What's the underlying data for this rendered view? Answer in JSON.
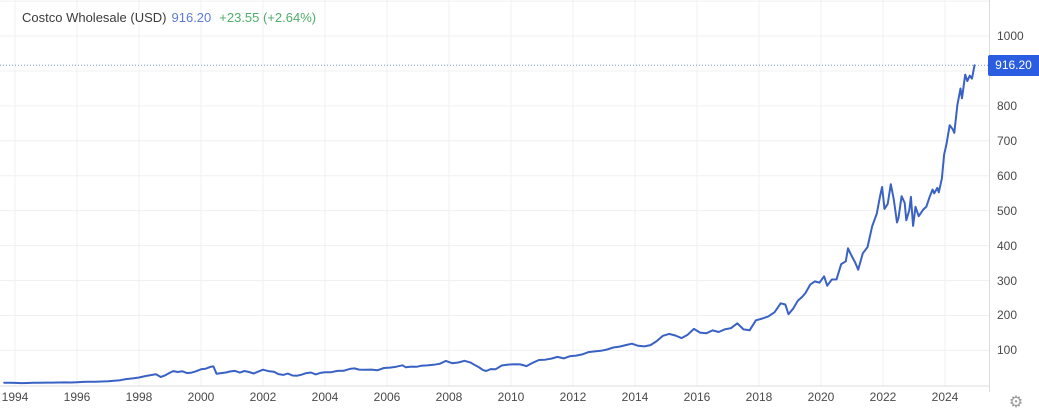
{
  "header": {
    "title": "Costco Wholesale (USD)",
    "price": "916.20",
    "change": "+23.55 (+2.64%)"
  },
  "price_badge": {
    "label": "916.20"
  },
  "icons": {
    "settings": "⚙"
  },
  "colors": {
    "line": "#3a62c4",
    "badge_bg": "#2b5de0",
    "badge_text": "#ffffff",
    "price_blue": "#5b7dd6",
    "change_green": "#4fae6a",
    "gridline": "#f0f0f0",
    "axis_line": "#dcdcdc",
    "dotted_price_line": "#7f9cd9"
  },
  "chart_data": {
    "type": "line",
    "title": "Costco Wholesale (USD)",
    "series_name": "Costco Wholesale stock price",
    "currency": "USD",
    "current_value": 916.2,
    "change_abs": 23.55,
    "change_pct": 2.64,
    "x_ticks": [
      1994,
      1996,
      1998,
      2000,
      2002,
      2004,
      2006,
      2008,
      2010,
      2012,
      2014,
      2016,
      2018,
      2020,
      2022,
      2024
    ],
    "y_ticks": [
      100,
      200,
      300,
      400,
      500,
      600,
      700,
      800,
      1000
    ],
    "y_gridline_step": 100,
    "y_gridline_max": 1100,
    "x_range": [
      1993.65,
      2025.1
    ],
    "ylim": [
      0,
      1104
    ],
    "grid": true,
    "legend_position": "none",
    "points": [
      [
        1993.65,
        7.4
      ],
      [
        1993.8,
        7.2
      ],
      [
        1994.0,
        7.0
      ],
      [
        1994.2,
        6.4
      ],
      [
        1994.4,
        6.6
      ],
      [
        1994.6,
        7.1
      ],
      [
        1994.8,
        7.5
      ],
      [
        1995.0,
        7.8
      ],
      [
        1995.2,
        7.6
      ],
      [
        1995.4,
        8.1
      ],
      [
        1995.6,
        8.4
      ],
      [
        1995.8,
        7.9
      ],
      [
        1996.0,
        8.8
      ],
      [
        1996.2,
        9.6
      ],
      [
        1996.4,
        10.3
      ],
      [
        1996.6,
        9.9
      ],
      [
        1996.8,
        10.8
      ],
      [
        1997.0,
        11.5
      ],
      [
        1997.2,
        12.8
      ],
      [
        1997.4,
        14.6
      ],
      [
        1997.6,
        17.9
      ],
      [
        1997.8,
        19.7
      ],
      [
        1998.0,
        22.3
      ],
      [
        1998.2,
        26.4
      ],
      [
        1998.4,
        29.5
      ],
      [
        1998.55,
        31.4
      ],
      [
        1998.7,
        23.9
      ],
      [
        1998.85,
        28.6
      ],
      [
        1999.0,
        36.4
      ],
      [
        1999.1,
        40.6
      ],
      [
        1999.25,
        38.1
      ],
      [
        1999.4,
        40.2
      ],
      [
        1999.55,
        34.8
      ],
      [
        1999.7,
        36.5
      ],
      [
        1999.85,
        40.3
      ],
      [
        2000.0,
        45.7
      ],
      [
        2000.15,
        47.5
      ],
      [
        2000.3,
        52.8
      ],
      [
        2000.4,
        54.2
      ],
      [
        2000.5,
        33.2
      ],
      [
        2000.65,
        34.8
      ],
      [
        2000.8,
        36.7
      ],
      [
        2000.95,
        39.9
      ],
      [
        2001.1,
        41.3
      ],
      [
        2001.25,
        36.4
      ],
      [
        2001.4,
        40.9
      ],
      [
        2001.55,
        38.2
      ],
      [
        2001.7,
        33.9
      ],
      [
        2001.85,
        39.3
      ],
      [
        2002.0,
        44.6
      ],
      [
        2002.2,
        40.1
      ],
      [
        2002.35,
        38.8
      ],
      [
        2002.5,
        32.2
      ],
      [
        2002.65,
        29.8
      ],
      [
        2002.8,
        33.5
      ],
      [
        2002.95,
        28.2
      ],
      [
        2003.1,
        27.6
      ],
      [
        2003.25,
        30.7
      ],
      [
        2003.4,
        34.9
      ],
      [
        2003.55,
        36.7
      ],
      [
        2003.7,
        31.3
      ],
      [
        2003.85,
        35.6
      ],
      [
        2004.0,
        37.4
      ],
      [
        2004.2,
        37.6
      ],
      [
        2004.4,
        41.2
      ],
      [
        2004.6,
        41.6
      ],
      [
        2004.8,
        47.0
      ],
      [
        2004.95,
        48.5
      ],
      [
        2005.1,
        44.9
      ],
      [
        2005.3,
        44.3
      ],
      [
        2005.5,
        44.9
      ],
      [
        2005.7,
        43.3
      ],
      [
        2005.9,
        49.6
      ],
      [
        2006.1,
        50.8
      ],
      [
        2006.3,
        53.2
      ],
      [
        2006.5,
        57.3
      ],
      [
        2006.6,
        51.7
      ],
      [
        2006.8,
        53.4
      ],
      [
        2006.95,
        52.9
      ],
      [
        2007.1,
        55.8
      ],
      [
        2007.3,
        56.9
      ],
      [
        2007.5,
        58.6
      ],
      [
        2007.7,
        61.5
      ],
      [
        2007.9,
        69.9
      ],
      [
        2008.1,
        63.4
      ],
      [
        2008.3,
        65.2
      ],
      [
        2008.5,
        70.2
      ],
      [
        2008.7,
        65.1
      ],
      [
        2008.85,
        57.3
      ],
      [
        2008.95,
        52.5
      ],
      [
        2009.1,
        43.4
      ],
      [
        2009.2,
        41.0
      ],
      [
        2009.35,
        46.5
      ],
      [
        2009.5,
        45.8
      ],
      [
        2009.7,
        56.6
      ],
      [
        2009.9,
        59.3
      ],
      [
        2010.1,
        60.0
      ],
      [
        2010.3,
        59.8
      ],
      [
        2010.5,
        54.9
      ],
      [
        2010.7,
        64.3
      ],
      [
        2010.9,
        72.3
      ],
      [
        2011.1,
        73.4
      ],
      [
        2011.3,
        76.5
      ],
      [
        2011.5,
        81.3
      ],
      [
        2011.7,
        77.0
      ],
      [
        2011.9,
        83.4
      ],
      [
        2012.1,
        85.1
      ],
      [
        2012.3,
        88.6
      ],
      [
        2012.5,
        95.0
      ],
      [
        2012.7,
        97.0
      ],
      [
        2012.9,
        98.8
      ],
      [
        2013.1,
        102.5
      ],
      [
        2013.3,
        108.1
      ],
      [
        2013.5,
        110.7
      ],
      [
        2013.7,
        115.1
      ],
      [
        2013.9,
        119.1
      ],
      [
        2014.1,
        113.0
      ],
      [
        2014.3,
        111.5
      ],
      [
        2014.5,
        115.2
      ],
      [
        2014.7,
        126.5
      ],
      [
        2014.9,
        141.8
      ],
      [
        2015.1,
        147.2
      ],
      [
        2015.3,
        142.5
      ],
      [
        2015.5,
        135.2
      ],
      [
        2015.7,
        144.9
      ],
      [
        2015.9,
        161.6
      ],
      [
        2016.1,
        150.8
      ],
      [
        2016.3,
        148.8
      ],
      [
        2016.5,
        157.2
      ],
      [
        2016.7,
        152.6
      ],
      [
        2016.9,
        160.2
      ],
      [
        2017.1,
        163.7
      ],
      [
        2017.3,
        177.5
      ],
      [
        2017.5,
        160.1
      ],
      [
        2017.7,
        157.9
      ],
      [
        2017.9,
        186.2
      ],
      [
        2018.1,
        190.9
      ],
      [
        2018.3,
        197.3
      ],
      [
        2018.5,
        209.0
      ],
      [
        2018.7,
        234.9
      ],
      [
        2018.85,
        231.3
      ],
      [
        2018.95,
        203.7
      ],
      [
        2019.1,
        219.3
      ],
      [
        2019.25,
        242.3
      ],
      [
        2019.4,
        254.0
      ],
      [
        2019.5,
        264.3
      ],
      [
        2019.65,
        288.2
      ],
      [
        2019.8,
        297.4
      ],
      [
        2019.95,
        293.9
      ],
      [
        2020.1,
        312.0
      ],
      [
        2020.2,
        285.1
      ],
      [
        2020.35,
        303.0
      ],
      [
        2020.5,
        303.2
      ],
      [
        2020.65,
        347.0
      ],
      [
        2020.8,
        355.0
      ],
      [
        2020.87,
        392.3
      ],
      [
        2020.95,
        376.8
      ],
      [
        2021.1,
        352.0
      ],
      [
        2021.2,
        331.0
      ],
      [
        2021.35,
        378.0
      ],
      [
        2021.5,
        395.7
      ],
      [
        2021.65,
        455.5
      ],
      [
        2021.8,
        491.5
      ],
      [
        2021.9,
        539.4
      ],
      [
        2021.97,
        567.7
      ],
      [
        2022.05,
        505.0
      ],
      [
        2022.15,
        519.3
      ],
      [
        2022.25,
        575.9
      ],
      [
        2022.35,
        531.7
      ],
      [
        2022.45,
        466.2
      ],
      [
        2022.5,
        479.3
      ],
      [
        2022.6,
        541.3
      ],
      [
        2022.7,
        522.1
      ],
      [
        2022.75,
        472.3
      ],
      [
        2022.85,
        501.5
      ],
      [
        2022.9,
        539.4
      ],
      [
        2022.97,
        456.5
      ],
      [
        2023.05,
        511.1
      ],
      [
        2023.15,
        484.1
      ],
      [
        2023.25,
        496.9
      ],
      [
        2023.3,
        503.2
      ],
      [
        2023.4,
        511.6
      ],
      [
        2023.5,
        538.4
      ],
      [
        2023.6,
        560.7
      ],
      [
        2023.65,
        549.3
      ],
      [
        2023.75,
        565.1
      ],
      [
        2023.8,
        552.7
      ],
      [
        2023.9,
        592.6
      ],
      [
        2023.97,
        660.1
      ],
      [
        2024.05,
        691.0
      ],
      [
        2024.15,
        744.7
      ],
      [
        2024.25,
        732.6
      ],
      [
        2024.3,
        722.8
      ],
      [
        2024.4,
        803.2
      ],
      [
        2024.5,
        849.8
      ],
      [
        2024.55,
        821.6
      ],
      [
        2024.65,
        889.5
      ],
      [
        2024.72,
        871.0
      ],
      [
        2024.8,
        886.7
      ],
      [
        2024.87,
        878.0
      ],
      [
        2024.95,
        916.2
      ]
    ]
  }
}
